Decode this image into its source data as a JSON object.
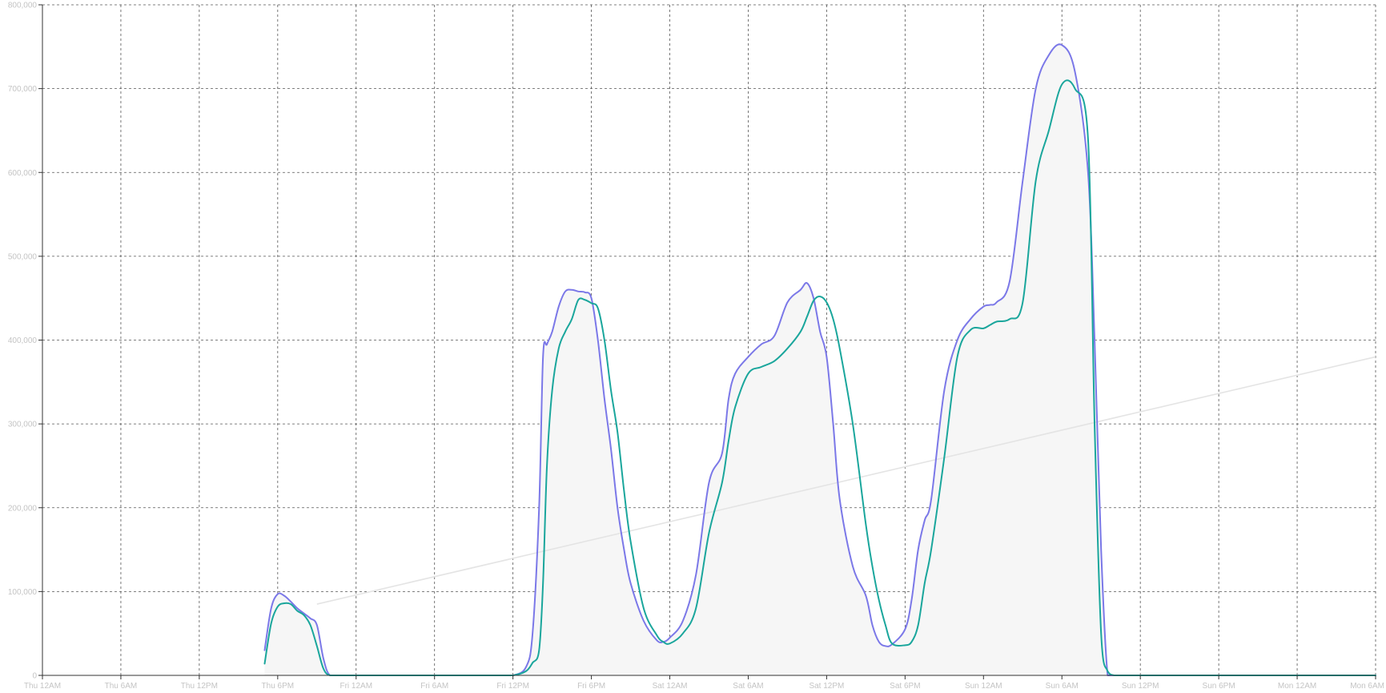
{
  "chart_data": {
    "type": "line",
    "title": "",
    "xlabel": "",
    "ylabel": "",
    "x_ticks": [
      "Thu 12AM",
      "Thu 6AM",
      "Thu 12PM",
      "Thu 6PM",
      "Fri 12AM",
      "Fri 6AM",
      "Fri 12PM",
      "Fri 6PM",
      "Sat 12AM",
      "Sat 6AM",
      "Sat 12PM",
      "Sat 6PM",
      "Sun 12AM",
      "Sun 6AM",
      "Sun 12PM",
      "Sun 6PM",
      "Mon 12AM",
      "Mon 6AM"
    ],
    "y_ticks": [
      "0",
      "100,000",
      "200,000",
      "300,000",
      "400,000",
      "500,000",
      "600,000",
      "700,000",
      "800,000"
    ],
    "ylim": [
      0,
      800000
    ],
    "grid": true,
    "legend": "none",
    "hours": [
      17,
      17.5,
      18,
      18.5,
      19,
      19.5,
      20,
      20.5,
      21,
      21.5,
      22,
      23,
      24,
      27,
      30,
      33,
      35,
      36,
      37,
      37.5,
      38,
      38.3,
      38.6,
      39,
      39.5,
      40,
      40.5,
      41,
      41.5,
      42,
      42.5,
      43,
      43.5,
      44,
      44.5,
      45,
      46,
      47,
      47.5,
      48,
      49,
      50,
      51,
      52,
      52.5,
      53,
      54,
      55,
      56,
      57,
      58,
      58.5,
      59,
      59.5,
      60,
      60.5,
      61,
      62,
      63,
      63.5,
      64,
      64.5,
      65,
      66,
      66.5,
      67,
      67.5,
      68,
      69,
      70,
      71,
      72,
      72.5,
      73,
      74,
      75,
      76,
      77,
      78,
      79,
      80,
      80.5,
      81,
      81.5,
      82,
      82.5,
      83,
      84,
      85,
      86,
      87,
      88,
      88.5,
      89,
      89.5,
      90,
      90.5,
      91,
      91.5,
      92,
      92.5,
      93,
      93.5,
      94,
      95,
      96,
      102
    ],
    "series": [
      {
        "color": "#7b78e8",
        "values": [
          30000,
          80000,
          97000,
          95000,
          88000,
          80000,
          74000,
          68000,
          60000,
          20000,
          0,
          0,
          0,
          0,
          0,
          0,
          0,
          0,
          10000,
          50000,
          200000,
          380000,
          395000,
          410000,
          440000,
          458000,
          460000,
          458000,
          457000,
          450000,
          400000,
          330000,
          270000,
          200000,
          150000,
          110000,
          65000,
          42000,
          40000,
          45000,
          65000,
          120000,
          230000,
          265000,
          330000,
          360000,
          380000,
          395000,
          405000,
          445000,
          460000,
          468000,
          450000,
          410000,
          380000,
          300000,
          210000,
          130000,
          95000,
          60000,
          40000,
          35000,
          37000,
          55000,
          90000,
          150000,
          185000,
          210000,
          340000,
          400000,
          425000,
          440000,
          442000,
          445000,
          470000,
          590000,
          700000,
          740000,
          752000,
          720000,
          600000,
          400000,
          150000,
          0,
          0,
          0,
          0,
          0,
          0,
          0,
          0,
          0,
          0,
          0,
          0,
          0,
          0,
          0,
          0,
          0,
          0,
          0,
          0,
          0,
          0,
          0,
          0
        ]
      },
      {
        "color": "#1aa69c",
        "values": [
          14000,
          62000,
          82000,
          86000,
          85000,
          77000,
          72000,
          60000,
          35000,
          8000,
          0,
          0,
          0,
          0,
          0,
          0,
          0,
          0,
          5000,
          15000,
          30000,
          110000,
          250000,
          340000,
          390000,
          410000,
          425000,
          448000,
          448000,
          444000,
          438000,
          400000,
          340000,
          290000,
          220000,
          160000,
          80000,
          48000,
          40000,
          38000,
          50000,
          80000,
          170000,
          230000,
          280000,
          320000,
          360000,
          368000,
          375000,
          390000,
          410000,
          428000,
          447000,
          452000,
          445000,
          425000,
          390000,
          300000,
          180000,
          130000,
          90000,
          60000,
          38000,
          36000,
          40000,
          60000,
          110000,
          150000,
          260000,
          380000,
          412000,
          414000,
          418000,
          422000,
          425000,
          445000,
          590000,
          650000,
          705000,
          700000,
          640000,
          300000,
          50000,
          5000,
          0,
          0,
          0,
          0,
          0,
          0,
          0,
          0,
          0,
          0,
          0,
          0,
          0,
          0,
          0,
          0,
          0,
          0,
          0,
          0,
          0,
          0,
          0
        ]
      }
    ],
    "trend": {
      "color": "#e4e4e4",
      "x": [
        21,
        102
      ],
      "y": [
        85000,
        380000
      ]
    },
    "area_color": "#f6f6f6"
  }
}
